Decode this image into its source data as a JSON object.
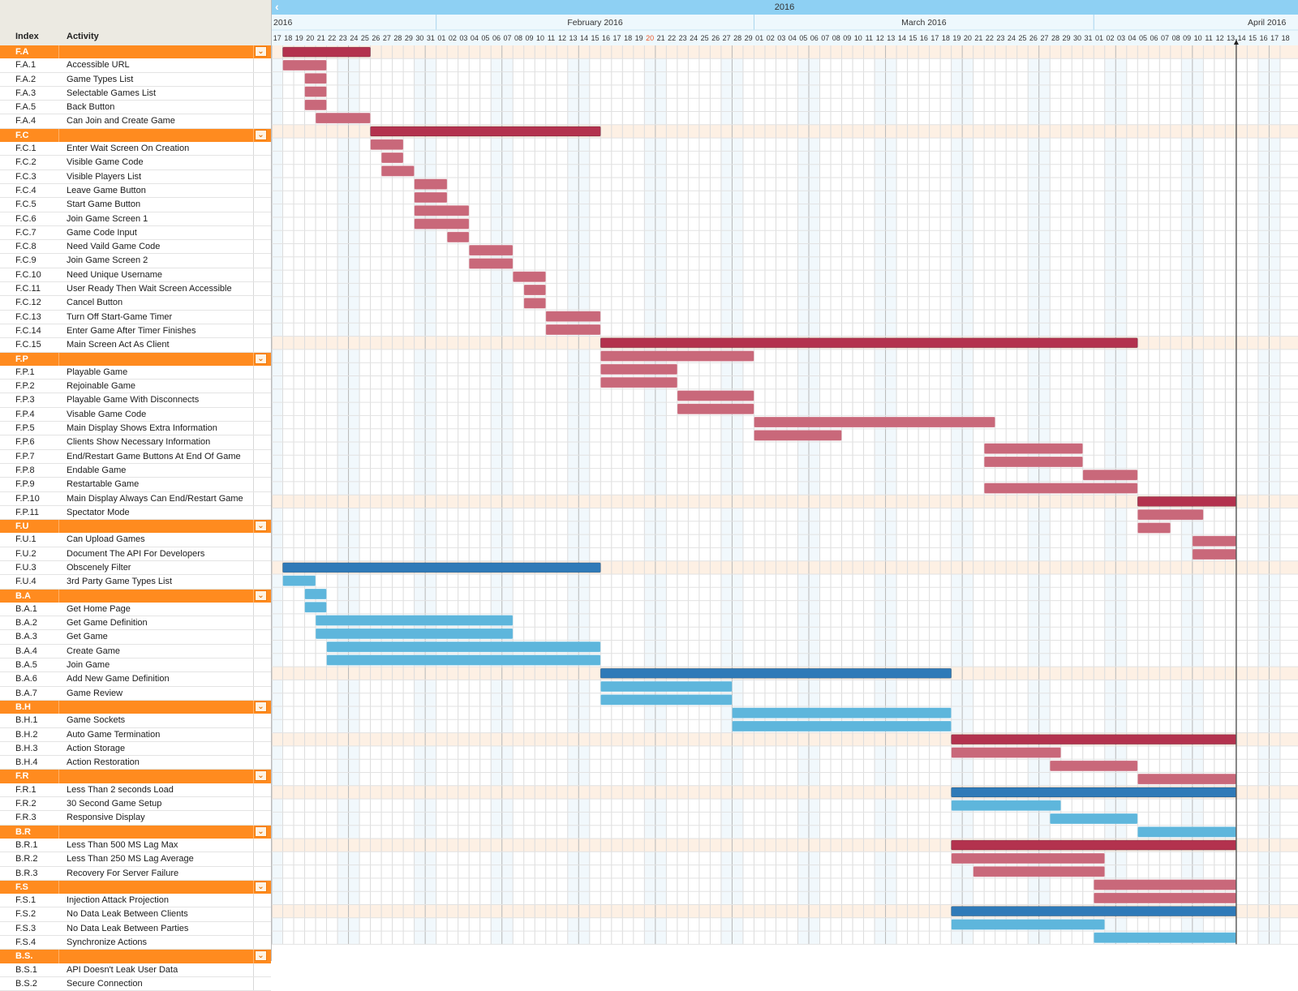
{
  "header": {
    "index_label": "Index",
    "activity_label": "Activity",
    "year_label": "2016",
    "months": [
      {
        "label": "2016",
        "start_day": 0
      },
      {
        "label": "February 2016",
        "start_day": 15
      },
      {
        "label": "March 2016",
        "start_day": 44
      },
      {
        "label": "April 2016",
        "start_day": 75
      }
    ],
    "days": [
      "17",
      "18",
      "19",
      "20",
      "21",
      "22",
      "23",
      "24",
      "25",
      "26",
      "27",
      "28",
      "29",
      "30",
      "31",
      "01",
      "02",
      "03",
      "04",
      "05",
      "06",
      "07",
      "08",
      "09",
      "10",
      "11",
      "12",
      "13",
      "14",
      "15",
      "16",
      "17",
      "18",
      "19",
      "20",
      "21",
      "22",
      "23",
      "24",
      "25",
      "26",
      "27",
      "28",
      "29",
      "01",
      "02",
      "03",
      "04",
      "05",
      "06",
      "07",
      "08",
      "09",
      "10",
      "11",
      "12",
      "13",
      "14",
      "15",
      "16",
      "17",
      "18",
      "19",
      "20",
      "21",
      "22",
      "23",
      "24",
      "25",
      "26",
      "27",
      "28",
      "29",
      "30",
      "31",
      "01",
      "02",
      "03",
      "04",
      "05",
      "06",
      "07",
      "08",
      "09",
      "10",
      "11",
      "12",
      "13",
      "14",
      "15",
      "16",
      "17",
      "18"
    ],
    "highlight_day_index": 34,
    "today_day_index": 88,
    "nav_prev_icon": "chevron-left-icon",
    "expander_icon": "chevron-down-icon"
  },
  "colors": {
    "group_row": "#ff8b1f",
    "front_summary": "#b3324e",
    "front_task": "#c9687a",
    "back_summary": "#2f7ab8",
    "back_task": "#5eb6dc",
    "weekend_shade": "#f1f8fc",
    "group_band": "#fdf0e4",
    "highlight_day": "#e8562a"
  },
  "rows": [
    {
      "type": "group",
      "index": "F.A",
      "activity": "",
      "kind": "front",
      "start": 1,
      "end": 9
    },
    {
      "type": "task",
      "index": "F.A.1",
      "activity": "Accessible URL",
      "kind": "front",
      "start": 1,
      "end": 5
    },
    {
      "type": "task",
      "index": "F.A.2",
      "activity": "Game Types List",
      "kind": "front",
      "start": 3,
      "end": 5
    },
    {
      "type": "task",
      "index": "F.A.3",
      "activity": "Selectable Games List",
      "kind": "front",
      "start": 3,
      "end": 5
    },
    {
      "type": "task",
      "index": "F.A.5",
      "activity": "Back Button",
      "kind": "front",
      "start": 3,
      "end": 5
    },
    {
      "type": "task",
      "index": "F.A.4",
      "activity": "Can Join and Create Game",
      "kind": "front",
      "start": 4,
      "end": 9
    },
    {
      "type": "group",
      "index": "F.C",
      "activity": "",
      "kind": "front",
      "start": 9,
      "end": 30
    },
    {
      "type": "task",
      "index": "F.C.1",
      "activity": "Enter Wait Screen On Creation",
      "kind": "front",
      "start": 9,
      "end": 12
    },
    {
      "type": "task",
      "index": "F.C.2",
      "activity": "Visible Game Code",
      "kind": "front",
      "start": 10,
      "end": 12
    },
    {
      "type": "task",
      "index": "F.C.3",
      "activity": "Visible Players List",
      "kind": "front",
      "start": 10,
      "end": 13
    },
    {
      "type": "task",
      "index": "F.C.4",
      "activity": "Leave Game Button",
      "kind": "front",
      "start": 13,
      "end": 16
    },
    {
      "type": "task",
      "index": "F.C.5",
      "activity": "Start Game Button",
      "kind": "front",
      "start": 13,
      "end": 16
    },
    {
      "type": "task",
      "index": "F.C.6",
      "activity": "Join Game Screen 1",
      "kind": "front",
      "start": 13,
      "end": 18
    },
    {
      "type": "task",
      "index": "F.C.7",
      "activity": "Game Code Input",
      "kind": "front",
      "start": 13,
      "end": 18
    },
    {
      "type": "task",
      "index": "F.C.8",
      "activity": "Need Vaild Game Code",
      "kind": "front",
      "start": 16,
      "end": 18
    },
    {
      "type": "task",
      "index": "F.C.9",
      "activity": "Join Game Screen 2",
      "kind": "front",
      "start": 18,
      "end": 22
    },
    {
      "type": "task",
      "index": "F.C.10",
      "activity": "Need Unique Username",
      "kind": "front",
      "start": 18,
      "end": 22
    },
    {
      "type": "task",
      "index": "F.C.11",
      "activity": "User Ready Then Wait Screen Accessible",
      "kind": "front",
      "start": 22,
      "end": 25
    },
    {
      "type": "task",
      "index": "F.C.12",
      "activity": "Cancel Button",
      "kind": "front",
      "start": 23,
      "end": 25
    },
    {
      "type": "task",
      "index": "F.C.13",
      "activity": "Turn Off Start-Game Timer",
      "kind": "front",
      "start": 23,
      "end": 25
    },
    {
      "type": "task",
      "index": "F.C.14",
      "activity": "Enter Game After Timer Finishes",
      "kind": "front",
      "start": 25,
      "end": 30
    },
    {
      "type": "task",
      "index": "F.C.15",
      "activity": "Main Screen Act As Client",
      "kind": "front",
      "start": 25,
      "end": 30
    },
    {
      "type": "group",
      "index": "F.P",
      "activity": "",
      "kind": "front",
      "start": 30,
      "end": 79
    },
    {
      "type": "task",
      "index": "F.P.1",
      "activity": "Playable Game",
      "kind": "front",
      "start": 30,
      "end": 44
    },
    {
      "type": "task",
      "index": "F.P.2",
      "activity": "Rejoinable Game",
      "kind": "front",
      "start": 30,
      "end": 37
    },
    {
      "type": "task",
      "index": "F.P.3",
      "activity": "Playable Game With Disconnects",
      "kind": "front",
      "start": 30,
      "end": 37
    },
    {
      "type": "task",
      "index": "F.P.4",
      "activity": "Visable Game Code",
      "kind": "front",
      "start": 37,
      "end": 44
    },
    {
      "type": "task",
      "index": "F.P.5",
      "activity": "Main Display Shows Extra Information",
      "kind": "front",
      "start": 37,
      "end": 44
    },
    {
      "type": "task",
      "index": "F.P.6",
      "activity": "Clients Show Necessary Information",
      "kind": "front",
      "start": 44,
      "end": 66
    },
    {
      "type": "task",
      "index": "F.P.7",
      "activity": "End/Restart Game Buttons At End Of Game",
      "kind": "front",
      "start": 44,
      "end": 52
    },
    {
      "type": "task",
      "index": "F.P.8",
      "activity": "Endable Game",
      "kind": "front",
      "start": 65,
      "end": 74
    },
    {
      "type": "task",
      "index": "F.P.9",
      "activity": "Restartable Game",
      "kind": "front",
      "start": 65,
      "end": 74
    },
    {
      "type": "task",
      "index": "F.P.10",
      "activity": "Main Display Always Can End/Restart Game",
      "kind": "front",
      "start": 74,
      "end": 79
    },
    {
      "type": "task",
      "index": "F.P.11",
      "activity": "Spectator Mode",
      "kind": "front",
      "start": 65,
      "end": 79
    },
    {
      "type": "group",
      "index": "F.U",
      "activity": "",
      "kind": "front",
      "start": 79,
      "end": 88
    },
    {
      "type": "task",
      "index": "F.U.1",
      "activity": "Can Upload Games",
      "kind": "front",
      "start": 79,
      "end": 85
    },
    {
      "type": "task",
      "index": "F.U.2",
      "activity": "Document The API For Developers",
      "kind": "front",
      "start": 79,
      "end": 82
    },
    {
      "type": "task",
      "index": "F.U.3",
      "activity": "Obscenely Filter",
      "kind": "front",
      "start": 84,
      "end": 88
    },
    {
      "type": "task",
      "index": "F.U.4",
      "activity": "3rd Party Game Types List",
      "kind": "front",
      "start": 84,
      "end": 88
    },
    {
      "type": "group",
      "index": "B.A",
      "activity": "",
      "kind": "back",
      "start": 1,
      "end": 30
    },
    {
      "type": "task",
      "index": "B.A.1",
      "activity": "Get Home Page",
      "kind": "back",
      "start": 1,
      "end": 4
    },
    {
      "type": "task",
      "index": "B.A.2",
      "activity": "Get Game Definition",
      "kind": "back",
      "start": 3,
      "end": 5
    },
    {
      "type": "task",
      "index": "B.A.3",
      "activity": "Get Game",
      "kind": "back",
      "start": 3,
      "end": 5
    },
    {
      "type": "task",
      "index": "B.A.4",
      "activity": "Create Game",
      "kind": "back",
      "start": 4,
      "end": 22
    },
    {
      "type": "task",
      "index": "B.A.5",
      "activity": "Join Game",
      "kind": "back",
      "start": 4,
      "end": 22
    },
    {
      "type": "task",
      "index": "B.A.6",
      "activity": "Add New Game Definition",
      "kind": "back",
      "start": 5,
      "end": 30
    },
    {
      "type": "task",
      "index": "B.A.7",
      "activity": "Game Review",
      "kind": "back",
      "start": 5,
      "end": 30
    },
    {
      "type": "group",
      "index": "B.H",
      "activity": "",
      "kind": "back",
      "start": 30,
      "end": 62
    },
    {
      "type": "task",
      "index": "B.H.1",
      "activity": "Game Sockets",
      "kind": "back",
      "start": 30,
      "end": 42
    },
    {
      "type": "task",
      "index": "B.H.2",
      "activity": "Auto Game Termination",
      "kind": "back",
      "start": 30,
      "end": 42
    },
    {
      "type": "task",
      "index": "B.H.3",
      "activity": "Action Storage",
      "kind": "back",
      "start": 42,
      "end": 62
    },
    {
      "type": "task",
      "index": "B.H.4",
      "activity": "Action Restoration",
      "kind": "back",
      "start": 42,
      "end": 62
    },
    {
      "type": "group",
      "index": "F.R",
      "activity": "",
      "kind": "front",
      "start": 62,
      "end": 88
    },
    {
      "type": "task",
      "index": "F.R.1",
      "activity": "Less Than 2 seconds Load",
      "kind": "front",
      "start": 62,
      "end": 72
    },
    {
      "type": "task",
      "index": "F.R.2",
      "activity": "30 Second Game Setup",
      "kind": "front",
      "start": 71,
      "end": 79
    },
    {
      "type": "task",
      "index": "F.R.3",
      "activity": "Responsive Display",
      "kind": "front",
      "start": 79,
      "end": 88
    },
    {
      "type": "group",
      "index": "B.R",
      "activity": "",
      "kind": "back",
      "start": 62,
      "end": 88
    },
    {
      "type": "task",
      "index": "B.R.1",
      "activity": "Less Than 500 MS Lag Max",
      "kind": "back",
      "start": 62,
      "end": 72
    },
    {
      "type": "task",
      "index": "B.R.2",
      "activity": "Less Than 250 MS Lag Average",
      "kind": "back",
      "start": 71,
      "end": 79
    },
    {
      "type": "task",
      "index": "B.R.3",
      "activity": "Recovery For Server Failure",
      "kind": "back",
      "start": 79,
      "end": 88
    },
    {
      "type": "group",
      "index": "F.S",
      "activity": "",
      "kind": "front",
      "start": 62,
      "end": 88
    },
    {
      "type": "task",
      "index": "F.S.1",
      "activity": "Injection Attack Projection",
      "kind": "front",
      "start": 62,
      "end": 76
    },
    {
      "type": "task",
      "index": "F.S.2",
      "activity": "No Data Leak Between Clients",
      "kind": "front",
      "start": 64,
      "end": 76
    },
    {
      "type": "task",
      "index": "F.S.3",
      "activity": "No Data Leak Between Parties",
      "kind": "front",
      "start": 75,
      "end": 88
    },
    {
      "type": "task",
      "index": "F.S.4",
      "activity": "Synchronize Actions",
      "kind": "front",
      "start": 75,
      "end": 88
    },
    {
      "type": "group",
      "index": "B.S.",
      "activity": "",
      "kind": "back",
      "start": 62,
      "end": 88
    },
    {
      "type": "task",
      "index": "B.S.1",
      "activity": "API Doesn't Leak User Data",
      "kind": "back",
      "start": 62,
      "end": 76
    },
    {
      "type": "task",
      "index": "B.S.2",
      "activity": "Secure Connection",
      "kind": "back",
      "start": 75,
      "end": 88
    }
  ]
}
